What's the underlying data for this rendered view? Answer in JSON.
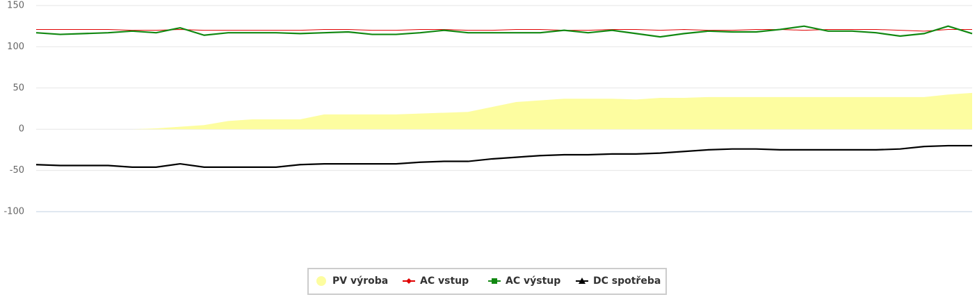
{
  "chart_data": {
    "type": "line",
    "categories": [
      null,
      null,
      null,
      null,
      null,
      null,
      null,
      null,
      null,
      null,
      null,
      null,
      null,
      null,
      null,
      null,
      null,
      null,
      null,
      null,
      null,
      null,
      null,
      null,
      null,
      null,
      null,
      null,
      null,
      null,
      null,
      null,
      null,
      null,
      null,
      null,
      null,
      null,
      null,
      null
    ],
    "series": [
      {
        "name": "PV výroba",
        "type": "area",
        "marker": "circle",
        "color": "#fdfda0",
        "values": [
          0,
          0,
          0,
          0,
          0,
          1,
          3,
          5,
          10,
          12,
          12,
          12,
          18,
          18,
          18,
          18,
          19,
          20,
          21,
          27,
          33,
          35,
          37,
          37,
          37,
          36,
          38,
          38,
          39,
          39,
          39,
          39,
          39,
          39,
          39,
          39,
          39,
          39,
          42,
          44
        ]
      },
      {
        "name": "AC vstup",
        "type": "line",
        "marker": "diamond",
        "color": "#e00000",
        "values": [
          121,
          121,
          121,
          121,
          120,
          120,
          121,
          120,
          120,
          120,
          120,
          120,
          121,
          121,
          120,
          120,
          121,
          121,
          120,
          120,
          121,
          121,
          120,
          120,
          121,
          121,
          120,
          121,
          120,
          120,
          121,
          121,
          120,
          121,
          121,
          121,
          120,
          119,
          121,
          121
        ]
      },
      {
        "name": "AC výstup",
        "type": "line",
        "marker": "square",
        "color": "#118811",
        "values": [
          117,
          115,
          116,
          117,
          119,
          117,
          123,
          114,
          117,
          117,
          117,
          116,
          117,
          118,
          115,
          115,
          117,
          120,
          117,
          117,
          117,
          117,
          120,
          117,
          120,
          116,
          112,
          116,
          119,
          118,
          118,
          121,
          125,
          119,
          119,
          117,
          113,
          116,
          125,
          116
        ]
      },
      {
        "name": "DC spotřeba",
        "type": "line",
        "marker": "triangle",
        "color": "#000000",
        "values": [
          -43,
          -44,
          -44,
          -44,
          -46,
          -46,
          -42,
          -46,
          -46,
          -46,
          -46,
          -43,
          -42,
          -42,
          -42,
          -42,
          -40,
          -39,
          -39,
          -36,
          -34,
          -32,
          -31,
          -31,
          -30,
          -30,
          -29,
          -27,
          -25,
          -24,
          -24,
          -25,
          -25,
          -25,
          -25,
          -25,
          -24,
          -21,
          -20,
          -20
        ]
      }
    ],
    "ylim": [
      -100,
      150
    ],
    "yticks": [
      -100,
      -50,
      0,
      50,
      100,
      150
    ],
    "grid": true,
    "legend": "bottom"
  }
}
